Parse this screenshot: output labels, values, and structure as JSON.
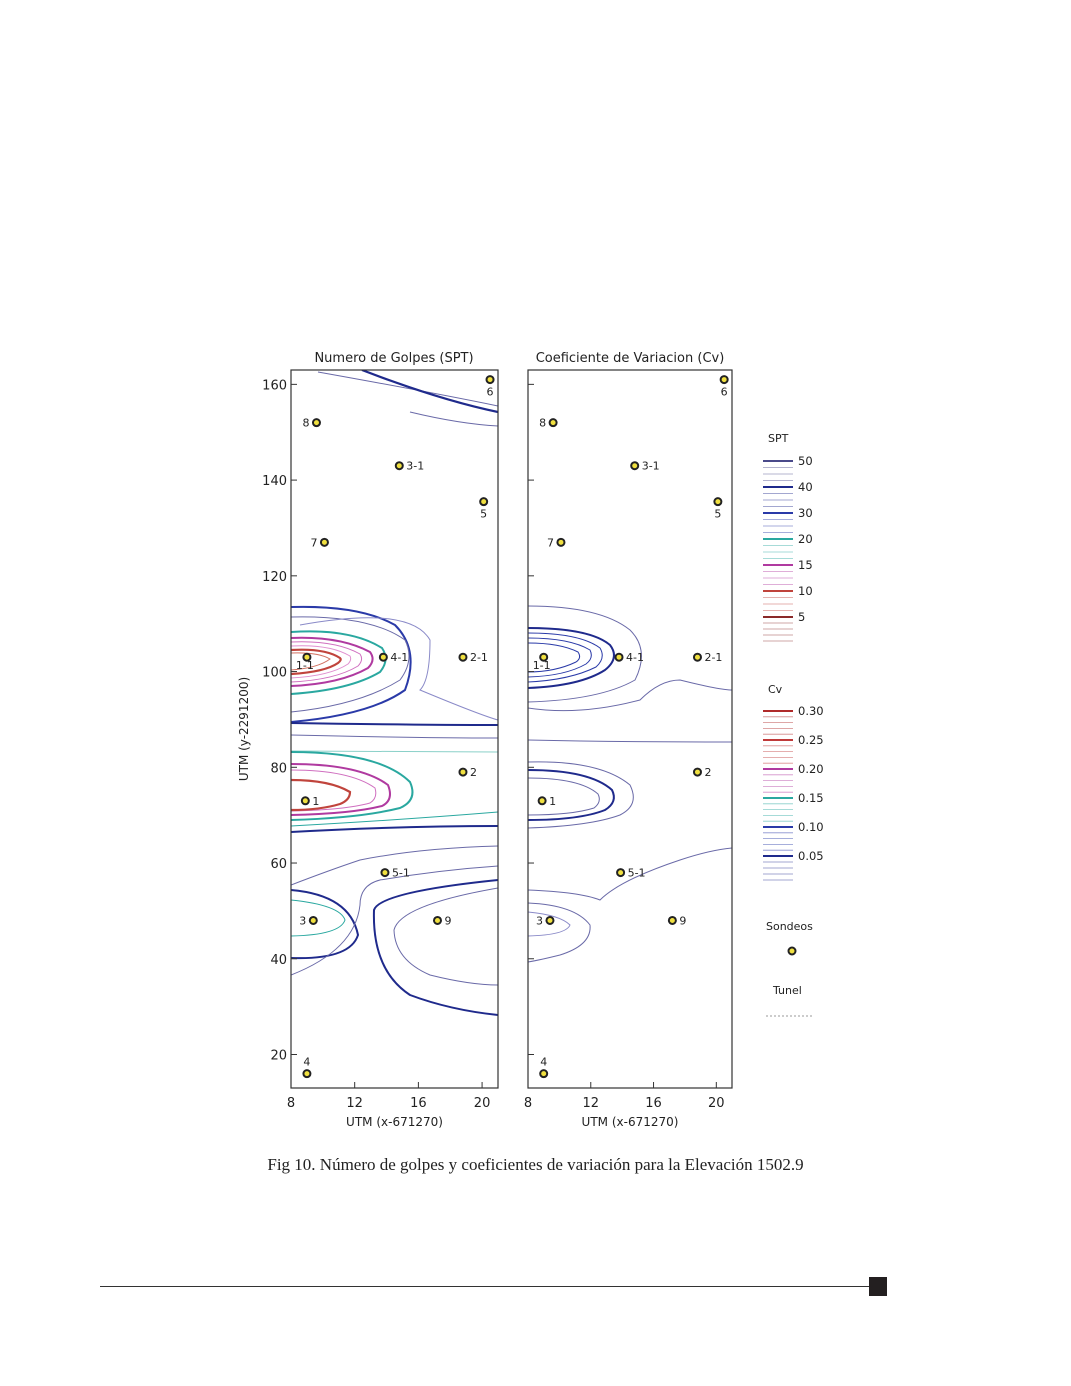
{
  "caption": "Fig 10. Número de golpes y coeficientes de variación para la Elevación 1502.9",
  "chart_data": [
    {
      "type": "contour",
      "title": "Numero de Golpes (SPT)",
      "xlabel": "UTM (x-671270)",
      "ylabel": "UTM (y-2291200)",
      "xlim": [
        8,
        21
      ],
      "ylim": [
        13,
        163
      ],
      "xticks": [
        "8",
        "12",
        "16",
        "20"
      ],
      "yticks": [
        "20",
        "40",
        "60",
        "80",
        "100",
        "120",
        "140",
        "160"
      ]
    },
    {
      "type": "contour",
      "title": "Coeficiente de Variacion (Cv)",
      "xlabel": "UTM (x-671270)",
      "ylabel": "",
      "xlim": [
        8,
        21
      ],
      "ylim": [
        13,
        163
      ],
      "xticks": [
        "8",
        "12",
        "16",
        "20"
      ],
      "yticks": []
    }
  ],
  "legend_spt": {
    "title": "SPT",
    "entries": [
      {
        "label": "50",
        "color": "#4a4a8a"
      },
      {
        "label": "40",
        "color": "#1f2a8c"
      },
      {
        "label": "30",
        "color": "#2a3aa8"
      },
      {
        "label": "20",
        "color": "#2aa8a0"
      },
      {
        "label": "15",
        "color": "#b03aa0"
      },
      {
        "label": "10",
        "color": "#c0443c"
      },
      {
        "label": "5",
        "color": "#8a2a2a"
      }
    ]
  },
  "legend_cv": {
    "title": "Cv",
    "entries": [
      {
        "label": "0.30",
        "color": "#b02a2a"
      },
      {
        "label": "0.25",
        "color": "#c03a3a"
      },
      {
        "label": "0.20",
        "color": "#b03aa0"
      },
      {
        "label": "0.15",
        "color": "#2aa8a0"
      },
      {
        "label": "0.10",
        "color": "#2a3aa8"
      },
      {
        "label": "0.05",
        "color": "#1f2a8c"
      }
    ]
  },
  "legend_sondeos": "Sondeos",
  "legend_tunel": "Tunel",
  "sondeos": [
    {
      "label": "6",
      "x": 20.5,
      "y": 161
    },
    {
      "label": "8",
      "x": 9.6,
      "y": 152
    },
    {
      "label": "3-1",
      "x": 14.8,
      "y": 143
    },
    {
      "label": "5",
      "x": 20.1,
      "y": 135.5
    },
    {
      "label": "7",
      "x": 10.1,
      "y": 127
    },
    {
      "label": "1-1",
      "x": 9.0,
      "y": 103
    },
    {
      "label": "4-1",
      "x": 13.8,
      "y": 103
    },
    {
      "label": "2-1",
      "x": 18.8,
      "y": 103
    },
    {
      "label": "2",
      "x": 18.8,
      "y": 79
    },
    {
      "label": "1",
      "x": 8.9,
      "y": 73
    },
    {
      "label": "5-1",
      "x": 13.9,
      "y": 58
    },
    {
      "label": "3",
      "x": 9.4,
      "y": 48
    },
    {
      "label": "9",
      "x": 17.2,
      "y": 48
    },
    {
      "label": "4",
      "x": 9.0,
      "y": 16
    }
  ]
}
